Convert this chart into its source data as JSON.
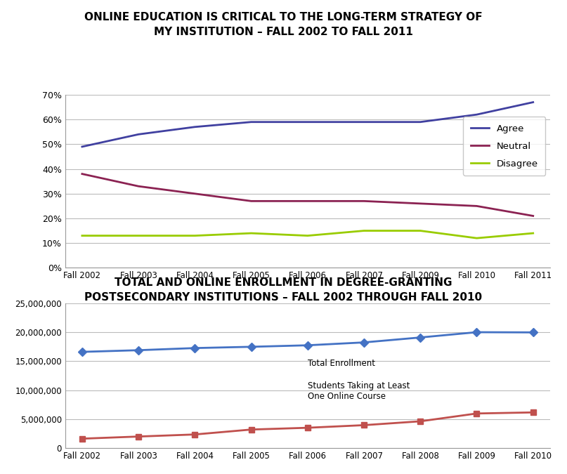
{
  "chart1": {
    "title_line1": "Online Education is Critical to the Long-term Strategy of",
    "title_line2": "my Institution – Fall 2002 to Fall 2011",
    "x_labels": [
      "Fall 2002",
      "Fall 2003",
      "Fall 2004",
      "Fall 2005",
      "Fall 2006",
      "Fall 2007",
      "Fall 2009",
      "Fall 2010",
      "Fall 2011"
    ],
    "agree": [
      0.49,
      0.54,
      0.57,
      0.59,
      0.59,
      0.59,
      0.59,
      0.62,
      0.67
    ],
    "neutral": [
      0.38,
      0.33,
      0.3,
      0.27,
      0.27,
      0.27,
      0.26,
      0.25,
      0.21
    ],
    "disagree": [
      0.13,
      0.13,
      0.13,
      0.14,
      0.13,
      0.15,
      0.15,
      0.12,
      0.14
    ],
    "agree_color": "#4040a0",
    "neutral_color": "#8b2252",
    "disagree_color": "#99cc00",
    "ylim": [
      0,
      0.7
    ],
    "yticks": [
      0.0,
      0.1,
      0.2,
      0.3,
      0.4,
      0.5,
      0.6,
      0.7
    ]
  },
  "chart2": {
    "title_line1": "Total and Online Enrollment in Degree-granting",
    "title_line2": "Postsecondary Institutions – Fall 2002 through Fall 2010",
    "x_labels": [
      "Fall 2002",
      "Fall 2003",
      "Fall 2004",
      "Fall 2005",
      "Fall 2006",
      "Fall 2007",
      "Fall 2008",
      "Fall 2009",
      "Fall 2010"
    ],
    "total_enrollment": [
      16612045,
      16900000,
      17270000,
      17490000,
      17750000,
      18248128,
      19102814,
      20013910,
      19980321
    ],
    "online_students": [
      1602970,
      1971397,
      2329783,
      3180050,
      3488381,
      3938111,
      4606353,
      5957597,
      6142280
    ],
    "total_color": "#4472c4",
    "online_color": "#c0504d",
    "ylim": [
      0,
      25000000
    ],
    "yticks": [
      0,
      5000000,
      10000000,
      15000000,
      20000000,
      25000000
    ],
    "total_label": "Total Enrollment",
    "online_label": "Students Taking at Least\nOne Online Course"
  },
  "background_color": "#ffffff",
  "grid_color": "#bbbbbb",
  "title1_sc": "ONLINE EDUCATION IS CRITICAL TO THE LONG-TERM STRATEGY OF\nMY INSTITUTION – FALL 2002 TO FALL 2011",
  "title2_sc": "TOTAL AND ONLINE ENROLLMENT IN DEGREE-GRANTING\nPOSTSECONDARY INSTITUTIONS – FALL 2002 THROUGH FALL 2010"
}
